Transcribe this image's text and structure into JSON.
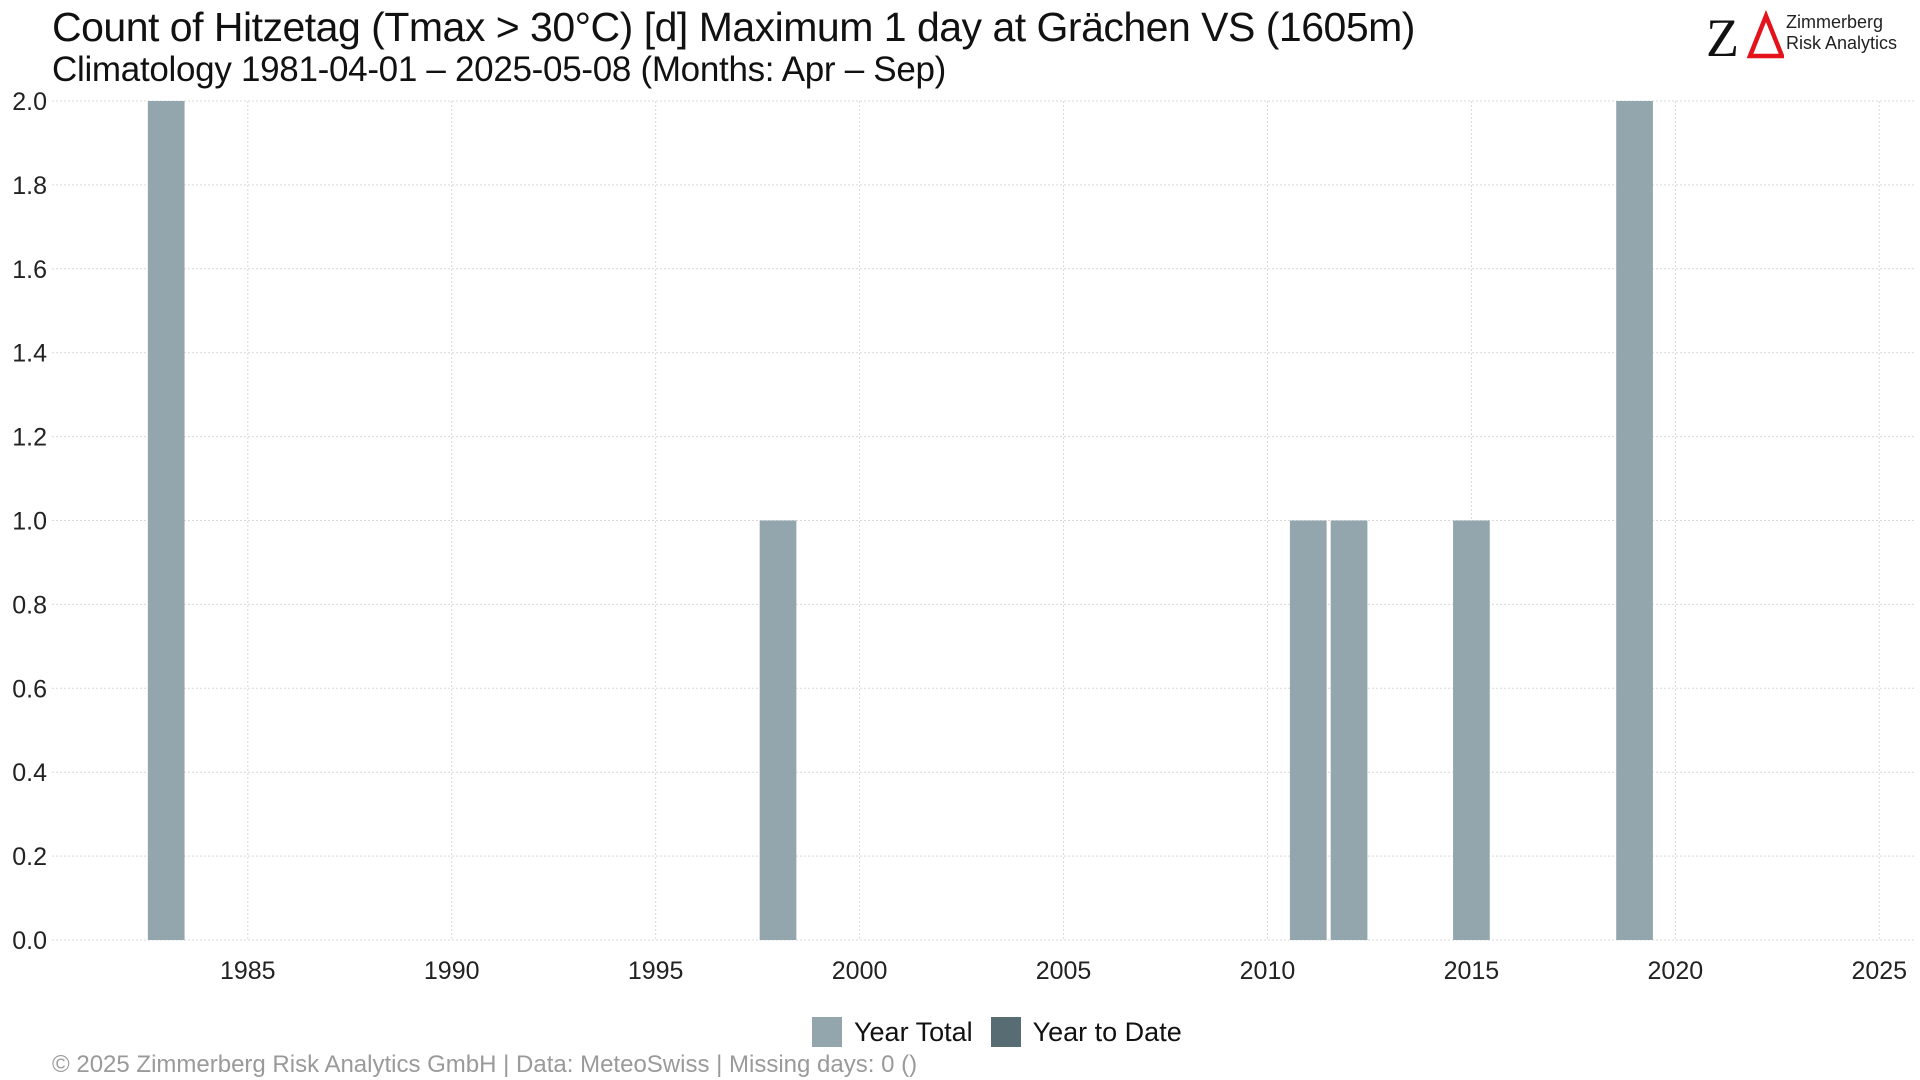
{
  "header": {
    "title": "Count of Hitzetag (Tmax > 30°C) [d] Maximum 1 day at Grächen  VS (1605m)",
    "subtitle": "Climatology 1981-04-01 – 2025-05-08 (Months: Apr – Sep)"
  },
  "logo": {
    "line1": "Zimmerberg",
    "line2": "Risk Analytics",
    "accent_color": "#e3121b"
  },
  "footer": {
    "text": "©  2025 Zimmerberg Risk Analytics GmbH | Data: MeteoSwiss | Missing days: 0 ()"
  },
  "chart_data": {
    "type": "bar",
    "x": [
      1983,
      1998,
      2011,
      2012,
      2015,
      2019
    ],
    "series": [
      {
        "name": "Year Total",
        "color": "#93a6ad",
        "values": [
          2,
          1,
          1,
          1,
          1,
          2
        ]
      },
      {
        "name": "Year to Date",
        "color": "#586d73",
        "values": [
          0,
          0,
          0,
          0,
          0,
          0
        ]
      }
    ],
    "xlim": [
      1980.2,
      2025.9
    ],
    "ylim": [
      0,
      2
    ],
    "x_ticks": [
      "1985",
      "1990",
      "1995",
      "2000",
      "2005",
      "2010",
      "2015",
      "2020",
      "2025"
    ],
    "y_ticks": [
      "0.0",
      "0.2",
      "0.4",
      "0.6",
      "0.8",
      "1.0",
      "1.2",
      "1.4",
      "1.6",
      "1.8",
      "2.0"
    ],
    "grid": true,
    "legend_position": "bottom-center"
  }
}
